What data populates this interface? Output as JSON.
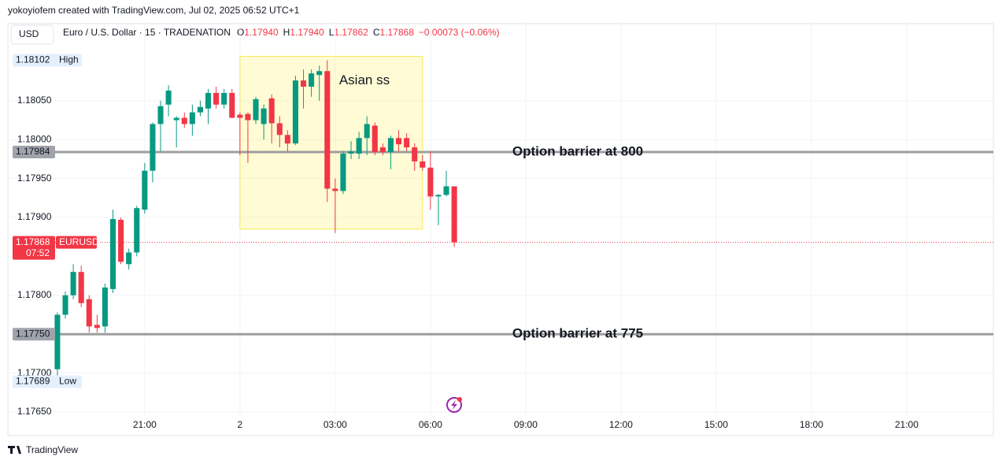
{
  "header": {
    "credit": "yokoyiofem created with TradingView.com, Jul 02, 2025 06:52 UTC+1"
  },
  "currency_button": "USD",
  "legend": {
    "symbol": "Euro / U.S. Dollar · 15 · TRADENATION",
    "ohlc": [
      {
        "key": "O",
        "value": "1.17940"
      },
      {
        "key": "H",
        "value": "1.17940"
      },
      {
        "key": "L",
        "value": "1.17862"
      },
      {
        "key": "C",
        "value": "1.17868"
      }
    ],
    "change": "−0.00073 (−0.06%)"
  },
  "chart_data": {
    "type": "candlestick",
    "x": [
      18.25,
      18.5,
      18.75,
      19,
      19.25,
      19.5,
      19.75,
      20,
      20.25,
      20.5,
      20.75,
      21,
      21.25,
      21.5,
      21.75,
      22,
      22.25,
      22.5,
      22.75,
      23,
      23.25,
      23.5,
      23.75,
      24,
      24.25,
      24.5,
      24.75,
      25,
      25.25,
      25.5,
      25.75,
      26,
      26.25,
      26.5,
      26.75,
      27,
      27.25,
      27.5,
      27.75,
      28,
      28.25,
      28.5,
      28.75,
      29,
      29.25,
      29.5,
      29.75,
      30,
      30.25,
      30.5,
      30.75
    ],
    "open": [
      1.17705,
      1.17775,
      1.178,
      1.1783,
      1.17795,
      1.17762,
      1.1776,
      1.17808,
      1.17897,
      1.1784,
      1.17855,
      1.1791,
      1.1796,
      1.1802,
      1.18045,
      1.18025,
      1.18028,
      1.1802,
      1.18035,
      1.1804,
      1.1806,
      1.18045,
      1.1806,
      1.18032,
      1.18033,
      1.18025,
      1.1802,
      1.18053,
      1.18021,
      1.18006,
      1.17995,
      1.18076,
      1.18068,
      1.18083,
      1.18088,
      1.17937,
      1.17934,
      1.17982,
      1.17982,
      1.18002,
      1.18018,
      1.1799,
      1.17984,
      1.18002,
      1.18002,
      1.1799,
      1.17972,
      1.17964,
      1.17927,
      1.17929,
      1.1794
    ],
    "high": [
      1.17778,
      1.17805,
      1.1784,
      1.17838,
      1.178,
      1.17775,
      1.17815,
      1.1791,
      1.179,
      1.1786,
      1.17915,
      1.1797,
      1.18022,
      1.1805,
      1.1807,
      1.1803,
      1.18035,
      1.18045,
      1.1805,
      1.18065,
      1.18068,
      1.18065,
      1.18065,
      1.18035,
      1.18035,
      1.18055,
      1.18045,
      1.18058,
      1.1803,
      1.18012,
      1.18082,
      1.1809,
      1.1809,
      1.18095,
      1.18102,
      1.1795,
      1.17985,
      1.17998,
      1.1801,
      1.1803,
      1.18022,
      1.17995,
      1.18005,
      1.18012,
      1.18008,
      1.17995,
      1.1798,
      1.17985,
      1.1793,
      1.1796,
      1.1794
    ],
    "low": [
      1.17689,
      1.1777,
      1.17795,
      1.17785,
      1.17752,
      1.17752,
      1.17752,
      1.17803,
      1.1784,
      1.17833,
      1.1785,
      1.17905,
      1.17945,
      1.17985,
      1.1803,
      1.1799,
      1.18015,
      1.18005,
      1.1803,
      1.1802,
      1.1804,
      1.1804,
      1.18028,
      1.1798,
      1.1797,
      1.1802,
      1.18,
      1.17995,
      1.1799,
      1.17985,
      1.17993,
      1.1804,
      1.18055,
      1.1805,
      1.1792,
      1.1788,
      1.1793,
      1.17975,
      1.17975,
      1.1798,
      1.1798,
      1.1798,
      1.17962,
      1.17985,
      1.17985,
      1.1796,
      1.1796,
      1.1791,
      1.1789,
      1.17927,
      1.17862
    ],
    "close": [
      1.17775,
      1.178,
      1.1783,
      1.1779,
      1.1776,
      1.17758,
      1.1781,
      1.17898,
      1.17843,
      1.17855,
      1.17912,
      1.1796,
      1.1802,
      1.18043,
      1.18063,
      1.18028,
      1.1802,
      1.18035,
      1.18042,
      1.1806,
      1.18045,
      1.1806,
      1.18028,
      1.18028,
      1.18025,
      1.18052,
      1.1804,
      1.18021,
      1.18006,
      1.17995,
      1.18076,
      1.18068,
      1.18085,
      1.18088,
      1.17937,
      1.17934,
      1.17982,
      1.17985,
      1.18002,
      1.1802,
      1.17984,
      1.17984,
      1.18002,
      1.17994,
      1.1799,
      1.17972,
      1.17964,
      1.17927,
      1.17929,
      1.1794,
      1.17868
    ],
    "up_color": "#089981",
    "down_color": "#f23645",
    "xlim": [
      16.69,
      47.73
    ],
    "xticks": [
      {
        "value": 21,
        "label": "21:00"
      },
      {
        "value": 24,
        "label": "2"
      },
      {
        "value": 27,
        "label": "03:00"
      },
      {
        "value": 30,
        "label": "06:00"
      },
      {
        "value": 33,
        "label": "09:00"
      },
      {
        "value": 36,
        "label": "12:00"
      },
      {
        "value": 39,
        "label": "15:00"
      },
      {
        "value": 42,
        "label": "18:00"
      },
      {
        "value": 45,
        "label": "21:00"
      }
    ],
    "ylim": [
      1.17646,
      1.18149
    ],
    "yticks": [
      {
        "value": 1.1765,
        "label": "1.17650"
      },
      {
        "value": 1.177,
        "label": "1.17700"
      },
      {
        "value": 1.178,
        "label": "1.17800"
      },
      {
        "value": 1.179,
        "label": "1.17900"
      },
      {
        "value": 1.1795,
        "label": "1.17950"
      },
      {
        "value": 1.18,
        "label": "1.18000"
      },
      {
        "value": 1.1805,
        "label": "1.18050"
      }
    ],
    "grid": true,
    "price_labels": [
      {
        "value": 1.18102,
        "label": "1.18102",
        "tag": "High"
      },
      {
        "value": 1.17689,
        "label": "1.17689",
        "tag": "Low"
      }
    ],
    "last_price": {
      "value": 1.17868,
      "label": "1.17868",
      "tag": "EURUSD",
      "countdown": "07:52"
    },
    "hlines": [
      {
        "value": 1.17984,
        "label": "1.17984",
        "text": "Option barrier at 800"
      },
      {
        "value": 1.1775,
        "label": "1.17750",
        "text": "Option barrier at 775"
      }
    ],
    "box": {
      "text": "Asian ss",
      "x": [
        24,
        29.75
      ],
      "y": [
        1.17885,
        1.18107
      ]
    }
  },
  "footer": {
    "brand": "TradingView"
  }
}
